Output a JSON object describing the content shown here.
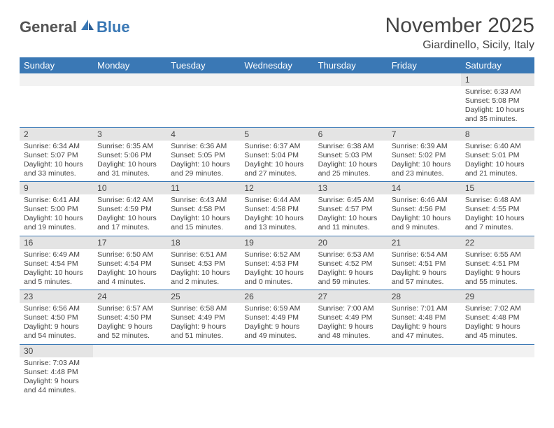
{
  "logo": {
    "general": "General",
    "blue": "Blue"
  },
  "title": "November 2025",
  "location": "Giardinello, Sicily, Italy",
  "colors": {
    "header_bg": "#3a78b5",
    "header_text": "#ffffff",
    "daynum_bg": "#e4e4e4",
    "border": "#3a78b5",
    "text": "#444444"
  },
  "daynames": [
    "Sunday",
    "Monday",
    "Tuesday",
    "Wednesday",
    "Thursday",
    "Friday",
    "Saturday"
  ],
  "weeks": [
    [
      {
        "num": "",
        "lines": [
          "",
          "",
          "",
          ""
        ]
      },
      {
        "num": "",
        "lines": [
          "",
          "",
          "",
          ""
        ]
      },
      {
        "num": "",
        "lines": [
          "",
          "",
          "",
          ""
        ]
      },
      {
        "num": "",
        "lines": [
          "",
          "",
          "",
          ""
        ]
      },
      {
        "num": "",
        "lines": [
          "",
          "",
          "",
          ""
        ]
      },
      {
        "num": "",
        "lines": [
          "",
          "",
          "",
          ""
        ]
      },
      {
        "num": "1",
        "lines": [
          "Sunrise: 6:33 AM",
          "Sunset: 5:08 PM",
          "Daylight: 10 hours",
          "and 35 minutes."
        ]
      }
    ],
    [
      {
        "num": "2",
        "lines": [
          "Sunrise: 6:34 AM",
          "Sunset: 5:07 PM",
          "Daylight: 10 hours",
          "and 33 minutes."
        ]
      },
      {
        "num": "3",
        "lines": [
          "Sunrise: 6:35 AM",
          "Sunset: 5:06 PM",
          "Daylight: 10 hours",
          "and 31 minutes."
        ]
      },
      {
        "num": "4",
        "lines": [
          "Sunrise: 6:36 AM",
          "Sunset: 5:05 PM",
          "Daylight: 10 hours",
          "and 29 minutes."
        ]
      },
      {
        "num": "5",
        "lines": [
          "Sunrise: 6:37 AM",
          "Sunset: 5:04 PM",
          "Daylight: 10 hours",
          "and 27 minutes."
        ]
      },
      {
        "num": "6",
        "lines": [
          "Sunrise: 6:38 AM",
          "Sunset: 5:03 PM",
          "Daylight: 10 hours",
          "and 25 minutes."
        ]
      },
      {
        "num": "7",
        "lines": [
          "Sunrise: 6:39 AM",
          "Sunset: 5:02 PM",
          "Daylight: 10 hours",
          "and 23 minutes."
        ]
      },
      {
        "num": "8",
        "lines": [
          "Sunrise: 6:40 AM",
          "Sunset: 5:01 PM",
          "Daylight: 10 hours",
          "and 21 minutes."
        ]
      }
    ],
    [
      {
        "num": "9",
        "lines": [
          "Sunrise: 6:41 AM",
          "Sunset: 5:00 PM",
          "Daylight: 10 hours",
          "and 19 minutes."
        ]
      },
      {
        "num": "10",
        "lines": [
          "Sunrise: 6:42 AM",
          "Sunset: 4:59 PM",
          "Daylight: 10 hours",
          "and 17 minutes."
        ]
      },
      {
        "num": "11",
        "lines": [
          "Sunrise: 6:43 AM",
          "Sunset: 4:58 PM",
          "Daylight: 10 hours",
          "and 15 minutes."
        ]
      },
      {
        "num": "12",
        "lines": [
          "Sunrise: 6:44 AM",
          "Sunset: 4:58 PM",
          "Daylight: 10 hours",
          "and 13 minutes."
        ]
      },
      {
        "num": "13",
        "lines": [
          "Sunrise: 6:45 AM",
          "Sunset: 4:57 PM",
          "Daylight: 10 hours",
          "and 11 minutes."
        ]
      },
      {
        "num": "14",
        "lines": [
          "Sunrise: 6:46 AM",
          "Sunset: 4:56 PM",
          "Daylight: 10 hours",
          "and 9 minutes."
        ]
      },
      {
        "num": "15",
        "lines": [
          "Sunrise: 6:48 AM",
          "Sunset: 4:55 PM",
          "Daylight: 10 hours",
          "and 7 minutes."
        ]
      }
    ],
    [
      {
        "num": "16",
        "lines": [
          "Sunrise: 6:49 AM",
          "Sunset: 4:54 PM",
          "Daylight: 10 hours",
          "and 5 minutes."
        ]
      },
      {
        "num": "17",
        "lines": [
          "Sunrise: 6:50 AM",
          "Sunset: 4:54 PM",
          "Daylight: 10 hours",
          "and 4 minutes."
        ]
      },
      {
        "num": "18",
        "lines": [
          "Sunrise: 6:51 AM",
          "Sunset: 4:53 PM",
          "Daylight: 10 hours",
          "and 2 minutes."
        ]
      },
      {
        "num": "19",
        "lines": [
          "Sunrise: 6:52 AM",
          "Sunset: 4:53 PM",
          "Daylight: 10 hours",
          "and 0 minutes."
        ]
      },
      {
        "num": "20",
        "lines": [
          "Sunrise: 6:53 AM",
          "Sunset: 4:52 PM",
          "Daylight: 9 hours",
          "and 59 minutes."
        ]
      },
      {
        "num": "21",
        "lines": [
          "Sunrise: 6:54 AM",
          "Sunset: 4:51 PM",
          "Daylight: 9 hours",
          "and 57 minutes."
        ]
      },
      {
        "num": "22",
        "lines": [
          "Sunrise: 6:55 AM",
          "Sunset: 4:51 PM",
          "Daylight: 9 hours",
          "and 55 minutes."
        ]
      }
    ],
    [
      {
        "num": "23",
        "lines": [
          "Sunrise: 6:56 AM",
          "Sunset: 4:50 PM",
          "Daylight: 9 hours",
          "and 54 minutes."
        ]
      },
      {
        "num": "24",
        "lines": [
          "Sunrise: 6:57 AM",
          "Sunset: 4:50 PM",
          "Daylight: 9 hours",
          "and 52 minutes."
        ]
      },
      {
        "num": "25",
        "lines": [
          "Sunrise: 6:58 AM",
          "Sunset: 4:49 PM",
          "Daylight: 9 hours",
          "and 51 minutes."
        ]
      },
      {
        "num": "26",
        "lines": [
          "Sunrise: 6:59 AM",
          "Sunset: 4:49 PM",
          "Daylight: 9 hours",
          "and 49 minutes."
        ]
      },
      {
        "num": "27",
        "lines": [
          "Sunrise: 7:00 AM",
          "Sunset: 4:49 PM",
          "Daylight: 9 hours",
          "and 48 minutes."
        ]
      },
      {
        "num": "28",
        "lines": [
          "Sunrise: 7:01 AM",
          "Sunset: 4:48 PM",
          "Daylight: 9 hours",
          "and 47 minutes."
        ]
      },
      {
        "num": "29",
        "lines": [
          "Sunrise: 7:02 AM",
          "Sunset: 4:48 PM",
          "Daylight: 9 hours",
          "and 45 minutes."
        ]
      }
    ],
    [
      {
        "num": "30",
        "lines": [
          "Sunrise: 7:03 AM",
          "Sunset: 4:48 PM",
          "Daylight: 9 hours",
          "and 44 minutes."
        ]
      },
      {
        "num": "",
        "lines": [
          "",
          "",
          "",
          ""
        ]
      },
      {
        "num": "",
        "lines": [
          "",
          "",
          "",
          ""
        ]
      },
      {
        "num": "",
        "lines": [
          "",
          "",
          "",
          ""
        ]
      },
      {
        "num": "",
        "lines": [
          "",
          "",
          "",
          ""
        ]
      },
      {
        "num": "",
        "lines": [
          "",
          "",
          "",
          ""
        ]
      },
      {
        "num": "",
        "lines": [
          "",
          "",
          "",
          ""
        ]
      }
    ]
  ]
}
